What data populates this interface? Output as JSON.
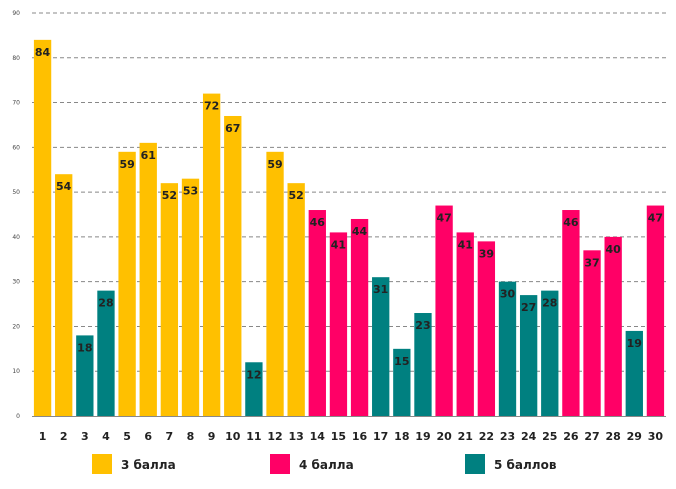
{
  "chart_data": {
    "type": "bar",
    "title": "",
    "xlabel": "",
    "ylabel": "",
    "ylim": [
      0,
      90
    ],
    "yticks": [
      0,
      10,
      20,
      30,
      40,
      50,
      60,
      70,
      80,
      90
    ],
    "grid": true,
    "categories": [
      "1",
      "2",
      "3",
      "4",
      "5",
      "6",
      "7",
      "8",
      "9",
      "10",
      "11",
      "12",
      "13",
      "14",
      "15",
      "16",
      "17",
      "18",
      "19",
      "20",
      "21",
      "22",
      "23",
      "24",
      "25",
      "26",
      "27",
      "28",
      "29",
      "30"
    ],
    "values": [
      84,
      54,
      18,
      28,
      59,
      61,
      52,
      53,
      72,
      67,
      12,
      59,
      52,
      46,
      41,
      44,
      31,
      15,
      23,
      47,
      41,
      39,
      30,
      27,
      28,
      46,
      37,
      40,
      19,
      47
    ],
    "groups": [
      "g3",
      "g3",
      "g5",
      "g5",
      "g3",
      "g3",
      "g3",
      "g3",
      "g3",
      "g3",
      "g5",
      "g3",
      "g3",
      "g4",
      "g4",
      "g4",
      "g5",
      "g5",
      "g5",
      "g4",
      "g4",
      "g4",
      "g5",
      "g5",
      "g5",
      "g4",
      "g4",
      "g4",
      "g5",
      "g4"
    ],
    "legend": [
      {
        "key": "g3",
        "label": "3 балла",
        "color": "#FFC000"
      },
      {
        "key": "g4",
        "label": "4 балла",
        "color": "#FF0066"
      },
      {
        "key": "g5",
        "label": "5 баллов",
        "color": "#008080"
      }
    ]
  }
}
